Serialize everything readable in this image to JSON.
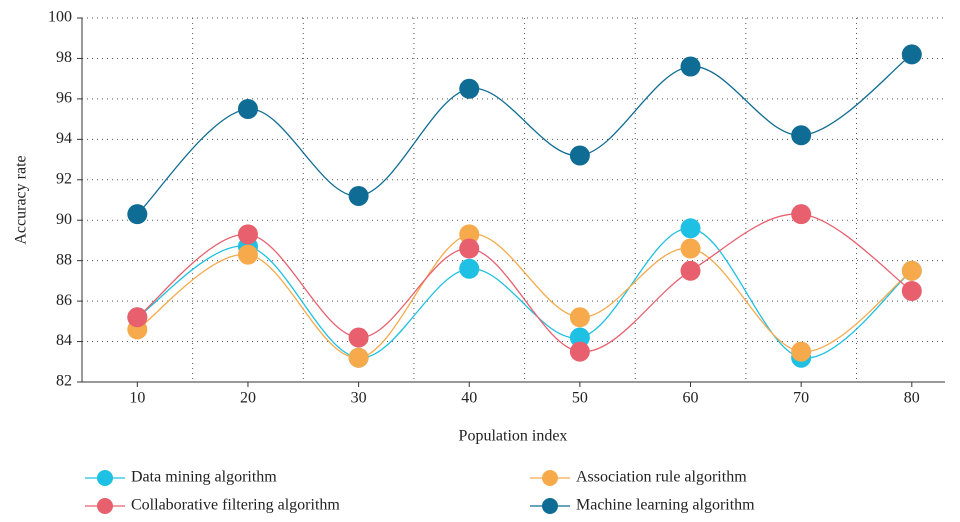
{
  "chart_data": {
    "type": "line",
    "x_label": "Population index",
    "y_label": "Accuracy rate",
    "x": [
      10,
      20,
      30,
      40,
      50,
      60,
      70,
      80
    ],
    "xlim": [
      5,
      83
    ],
    "xticks": [
      10,
      20,
      30,
      40,
      50,
      60,
      70,
      80
    ],
    "ylim": [
      82,
      100
    ],
    "yticks": [
      82,
      84,
      86,
      88,
      90,
      92,
      94,
      96,
      98,
      100
    ],
    "grid": true,
    "smooth": true,
    "legend": "bottom",
    "series": [
      {
        "name": "Data mining algorithm",
        "color": "#1ec0e3",
        "values": [
          85.2,
          88.7,
          83.2,
          87.6,
          84.2,
          89.6,
          83.2,
          87.5
        ]
      },
      {
        "name": "Association rule algorithm",
        "color": "#f6aa4c",
        "values": [
          84.6,
          88.3,
          83.2,
          89.3,
          85.2,
          88.6,
          83.5,
          87.5
        ]
      },
      {
        "name": "Collaborative filtering algorithm",
        "color": "#e8606e",
        "values": [
          85.2,
          89.3,
          84.2,
          88.6,
          83.5,
          87.5,
          90.3,
          86.5
        ]
      },
      {
        "name": "Machine learning algorithm",
        "color": "#0f6c94",
        "values": [
          90.3,
          95.5,
          91.2,
          96.5,
          93.2,
          97.6,
          94.2,
          98.2
        ]
      }
    ]
  }
}
